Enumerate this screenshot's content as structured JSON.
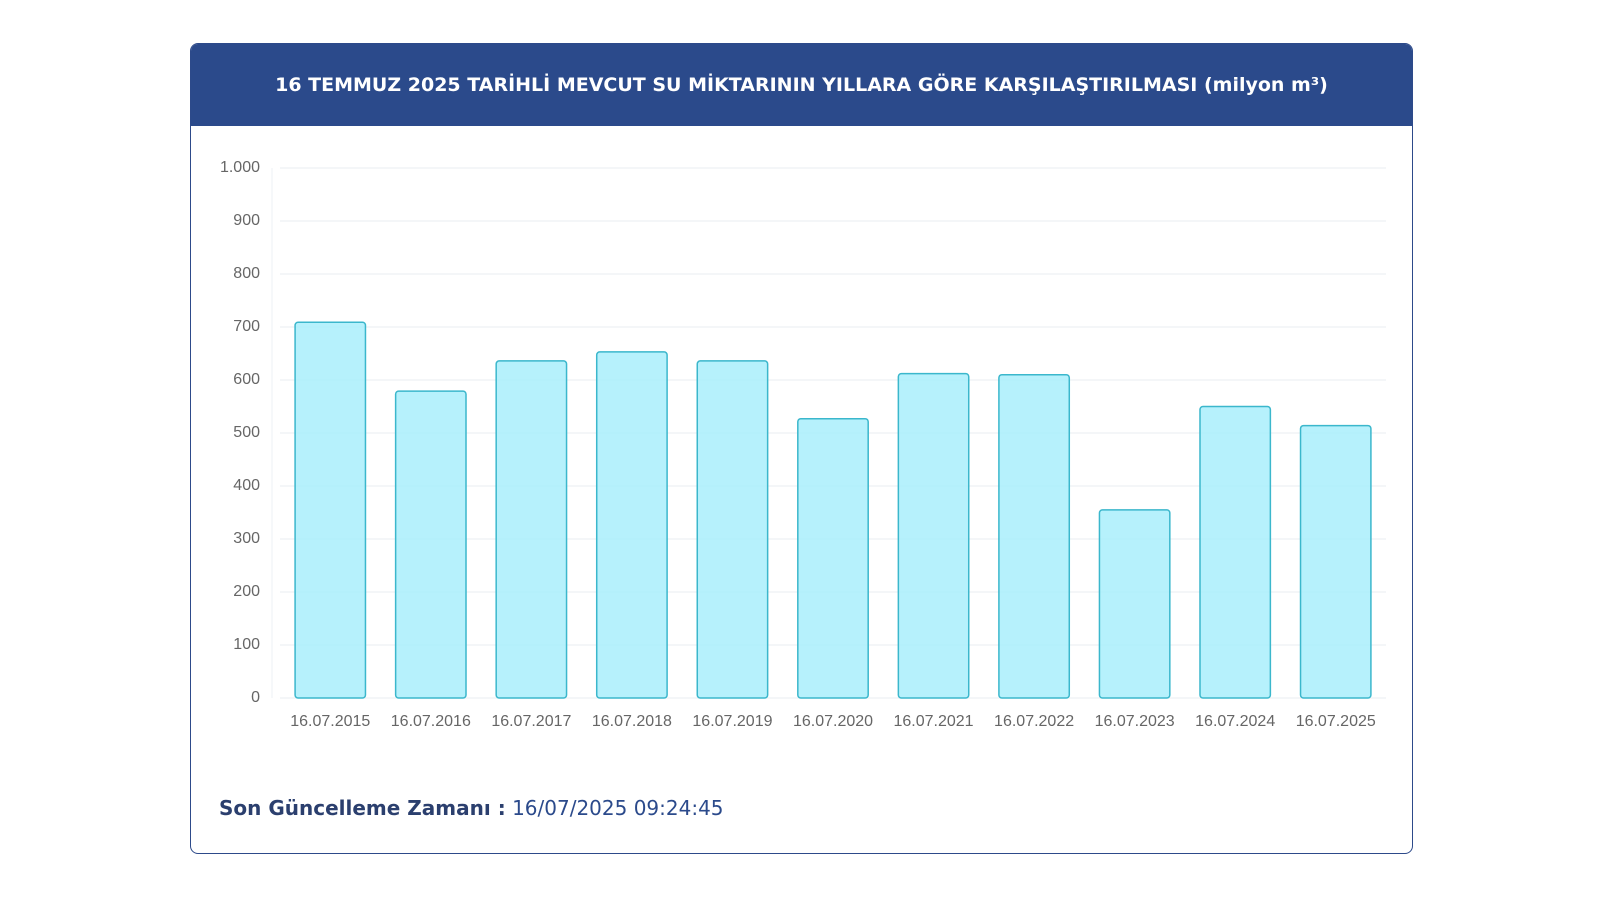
{
  "chart_data": {
    "type": "bar",
    "title": "16 TEMMUZ 2025 TARİHLİ MEVCUT SU MİKTARININ YILLARA GÖRE KARŞILAŞTIRILMASI (milyon m³)",
    "categories": [
      "16.07.2015",
      "16.07.2016",
      "16.07.2017",
      "16.07.2018",
      "16.07.2019",
      "16.07.2020",
      "16.07.2021",
      "16.07.2022",
      "16.07.2023",
      "16.07.2024",
      "16.07.2025"
    ],
    "values": [
      709,
      579,
      636,
      653,
      636,
      527,
      612,
      610,
      355,
      550,
      514
    ],
    "color": "#a9eefc",
    "edge_color": "#3bb7cc",
    "ylim": [
      0,
      1000
    ],
    "yticks": [
      0,
      100,
      200,
      300,
      400,
      500,
      600,
      700,
      800,
      900,
      {
        "value": 1000,
        "label": "1.000"
      }
    ],
    "grid": true
  },
  "footer": {
    "label": "Son Güncelleme Zamanı :",
    "value": "16/07/2025 09:24:45"
  }
}
